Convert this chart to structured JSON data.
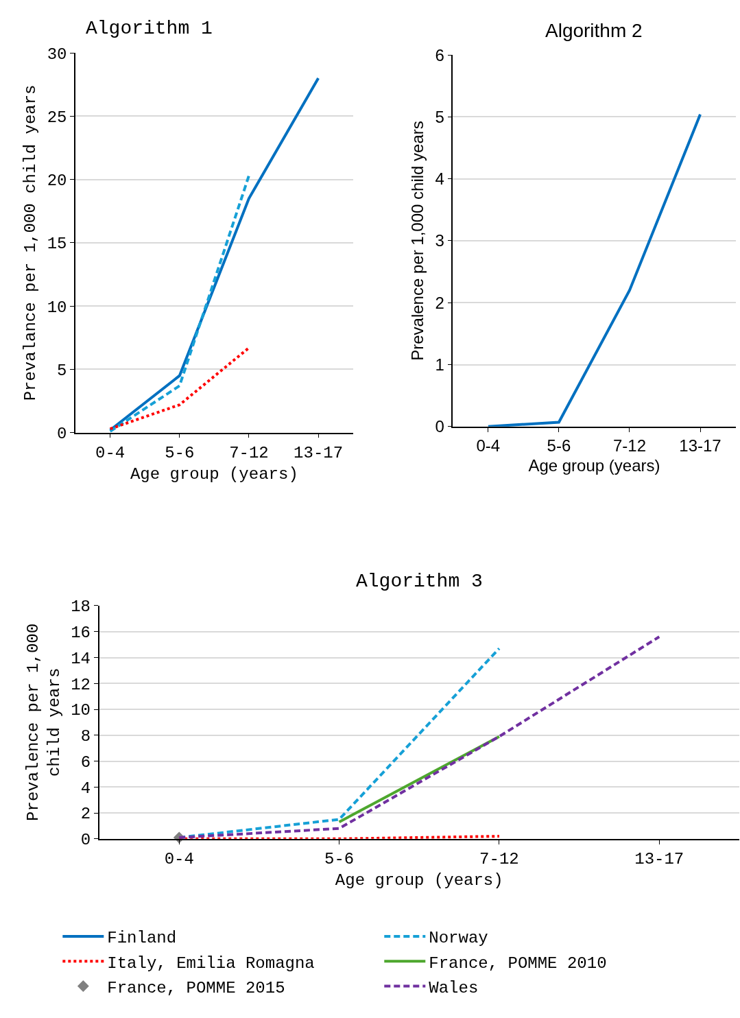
{
  "chart_data": [
    {
      "type": "line",
      "title": "Algorithm 1",
      "xlabel": "Age group (years)",
      "ylabel": "Prevalance per 1,000 child years",
      "categories": [
        "0-4",
        "5-6",
        "7-12",
        "13-17"
      ],
      "ylim": [
        0,
        30
      ],
      "yticks": [
        0,
        5,
        10,
        15,
        20,
        25,
        30
      ],
      "grid": "y",
      "legend": "bottom",
      "series": [
        {
          "name": "Finland",
          "color": "#0070c0",
          "line_style": "solid",
          "values": [
            0.2,
            4.5,
            18.5,
            28.0
          ]
        },
        {
          "name": "Norway",
          "color": "#16a0d6",
          "line_style": "dashed",
          "values": [
            0.1,
            3.7,
            20.3,
            null
          ]
        },
        {
          "name": "Italy, Emilia Romagna",
          "color": "#ff0000",
          "line_style": "dotted",
          "values": [
            0.3,
            2.2,
            6.7,
            null
          ]
        }
      ]
    },
    {
      "type": "line",
      "title": "Algorithm 2",
      "xlabel": "Age group (years)",
      "ylabel": "Prevalence per 1,000 child years",
      "categories": [
        "0-4",
        "5-6",
        "7-12",
        "13-17"
      ],
      "ylim": [
        0,
        6
      ],
      "yticks": [
        0,
        1,
        2,
        3,
        4,
        5,
        6
      ],
      "grid": "y",
      "legend": false,
      "series": [
        {
          "name": "Finland",
          "color": "#0070c0",
          "line_style": "solid",
          "values": [
            0,
            0.07,
            2.2,
            5.04
          ]
        }
      ]
    },
    {
      "type": "line",
      "title": "Algorithm 3",
      "xlabel": "Age group (years)",
      "ylabel": "Prevalence per 1,000 child years",
      "categories": [
        "0-4",
        "5-6",
        "7-12",
        "13-17"
      ],
      "ylim": [
        0,
        18
      ],
      "yticks": [
        0,
        2,
        4,
        6,
        8,
        10,
        12,
        14,
        16,
        18
      ],
      "grid": "y",
      "legend": "bottom",
      "series": [
        {
          "name": "Norway",
          "color": "#16a0d6",
          "line_style": "dashed",
          "values": [
            0.1,
            1.5,
            14.7,
            null
          ]
        },
        {
          "name": "France, POMME 2010",
          "color": "#4ea72e",
          "line_style": "solid",
          "values": [
            null,
            1.3,
            7.9,
            null
          ]
        },
        {
          "name": "France, POMME 2015",
          "color": "#808080",
          "type": "scatter",
          "marker": "diamond",
          "values": [
            0.1,
            null,
            null,
            null
          ]
        },
        {
          "name": "Italy, Emilia Romagna",
          "color": "#ff0000",
          "line_style": "dotted",
          "values": [
            0,
            0,
            0.2,
            null
          ]
        },
        {
          "name": "Wales",
          "color": "#7030a0",
          "line_style": "dashed",
          "values": [
            0.1,
            0.8,
            7.9,
            15.6
          ]
        }
      ]
    }
  ]
}
